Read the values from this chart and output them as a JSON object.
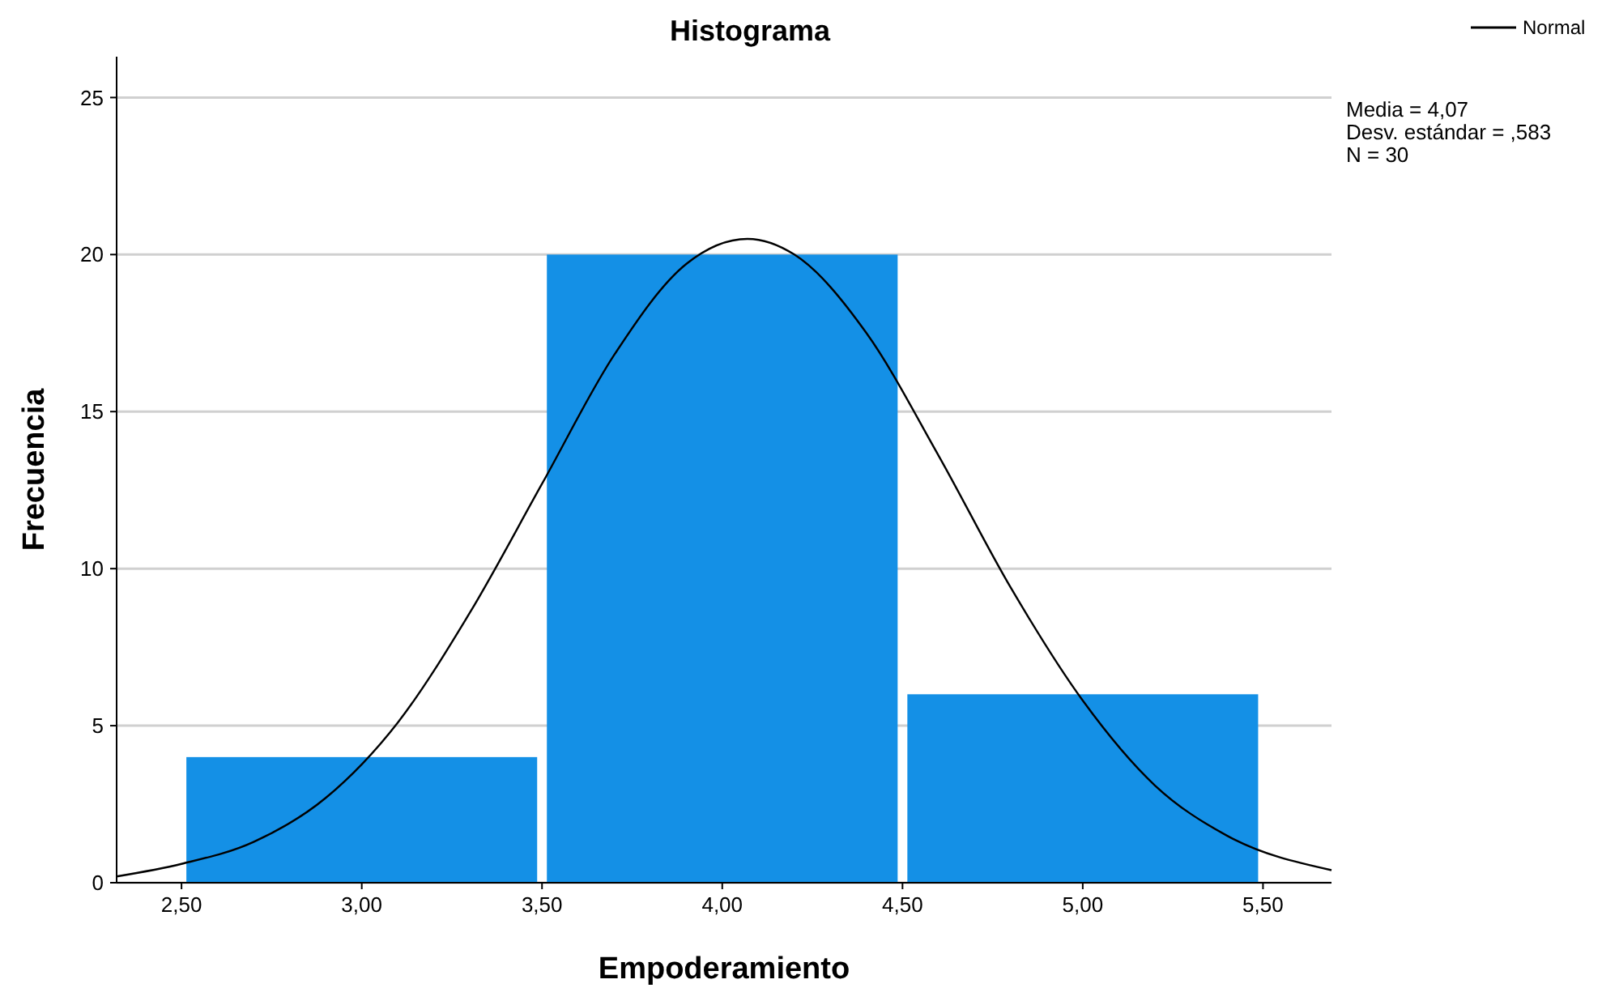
{
  "chart_data": {
    "type": "histogram",
    "title": "Histograma",
    "xlabel": "Empoderamiento",
    "ylabel": "Frecuencia",
    "bins": [
      2.5,
      3.5,
      4.5,
      5.5
    ],
    "series": [
      {
        "color": "#1490e6",
        "values": [
          4,
          20,
          6
        ]
      },
      {
        "type": "line",
        "name": "Normal",
        "color": "#000000",
        "x": [
          2.32,
          2.5,
          2.7,
          2.9,
          3.1,
          3.3,
          3.5,
          3.7,
          3.9,
          4.07,
          4.2,
          4.4,
          4.6,
          4.8,
          5.0,
          5.2,
          5.4,
          5.69
        ],
        "values": [
          0.2,
          0.6,
          1.3,
          2.7,
          5.1,
          8.6,
          12.7,
          16.8,
          19.7,
          20.5,
          20.0,
          17.5,
          13.6,
          9.4,
          5.8,
          3.1,
          1.5,
          0.4
        ]
      }
    ],
    "xlim": [
      2.32,
      5.69
    ],
    "xticks": [
      {
        "value": 2.5,
        "label": "2,50"
      },
      {
        "value": 3,
        "label": "3,00"
      },
      {
        "value": 3.5,
        "label": "3,50"
      },
      {
        "value": 4,
        "label": "4,00"
      },
      {
        "value": 4.5,
        "label": "4,50"
      },
      {
        "value": 5,
        "label": "5,00"
      },
      {
        "value": 5.5,
        "label": "5,50"
      }
    ],
    "ylim": [
      0,
      26.3
    ],
    "yticks": [
      0,
      5,
      10,
      15,
      20,
      25
    ],
    "grid": "y",
    "legend": "top right",
    "marker": "none",
    "line_style": "solid",
    "annotations": [
      "Media = 4,07",
      "Desv. estándar = ,583",
      "N = 30"
    ]
  }
}
